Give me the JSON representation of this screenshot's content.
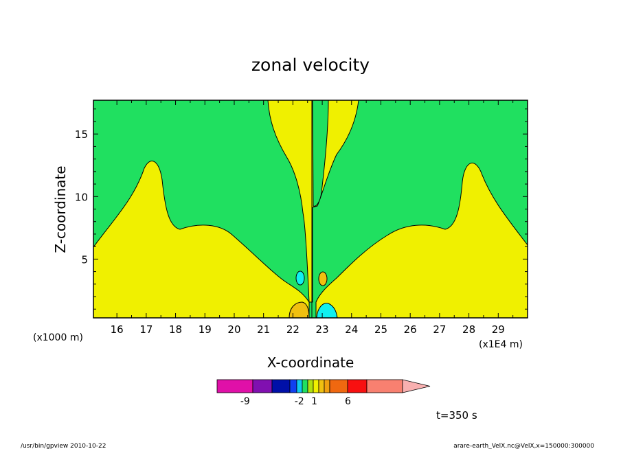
{
  "chart_data": {
    "type": "contour",
    "title": "zonal velocity",
    "xlabel": "X-coordinate",
    "ylabel": "Z-coordinate",
    "x_unit": "(x1E4 m)",
    "y_unit": "(x1000 m)",
    "xlim": [
      15.2,
      30.0
    ],
    "ylim": [
      0.3,
      17.7
    ],
    "x_ticks": [
      "16",
      "17",
      "18",
      "19",
      "20",
      "21",
      "22",
      "23",
      "24",
      "25",
      "26",
      "27",
      "28",
      "29"
    ],
    "y_ticks": [
      "5",
      "10",
      "15"
    ],
    "colorbar": {
      "labels": [
        {
          "value": "-9",
          "pos": 0.15
        },
        {
          "value": "-2",
          "pos": 0.44
        },
        {
          "value": "1",
          "pos": 0.52
        },
        {
          "value": "6",
          "pos": 0.7
        }
      ],
      "colors": [
        "#e010a8",
        "#8010b0",
        "#0010a8",
        "#1040f0",
        "#10c8f0",
        "#20e060",
        "#b0e010",
        "#f0f000",
        "#f0c010",
        "#f0a010",
        "#f06810",
        "#f81010",
        "#f88070",
        "#f8b0b0"
      ]
    },
    "regions": {
      "positive": "#f0f000",
      "weak_negative": "#20e060",
      "strong_positive": "#f0c010",
      "strong_negative": "#10f0f0"
    },
    "time_label": "t=350 s"
  },
  "footer": {
    "left": "/usr/bin/gpview  2010-10-22",
    "right": "arare-earth_VelX.nc@VelX,x=150000:300000"
  }
}
